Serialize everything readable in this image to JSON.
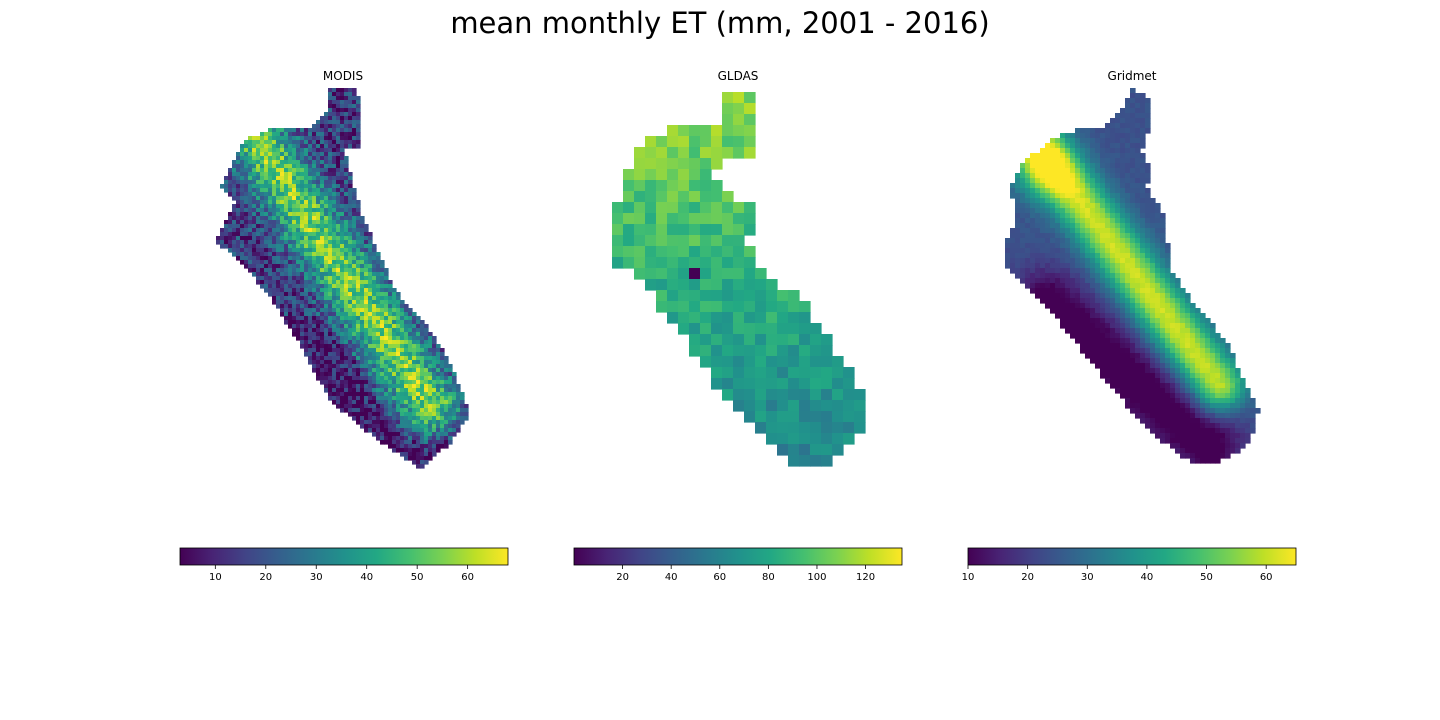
{
  "figure": {
    "title": "mean monthly ET (mm, 2001 - 2016)"
  },
  "chart_data": [
    {
      "type": "heatmap",
      "title": "MODIS",
      "colormap": "viridis",
      "pattern": "fine",
      "colorbar": {
        "range": [
          3,
          68
        ],
        "ticks": [
          10,
          20,
          30,
          40,
          50,
          60
        ],
        "orientation": "horizontal"
      }
    },
    {
      "type": "heatmap",
      "title": "GLDAS",
      "colormap": "viridis",
      "pattern": "coarse",
      "colorbar": {
        "range": [
          0,
          135
        ],
        "ticks": [
          20,
          40,
          60,
          80,
          100,
          120
        ],
        "orientation": "horizontal"
      }
    },
    {
      "type": "heatmap",
      "title": "Gridmet",
      "colormap": "viridis",
      "pattern": "smooth",
      "colorbar": {
        "range": [
          10,
          65
        ],
        "ticks": [
          10,
          20,
          30,
          40,
          50,
          60
        ],
        "orientation": "horizontal"
      }
    }
  ]
}
